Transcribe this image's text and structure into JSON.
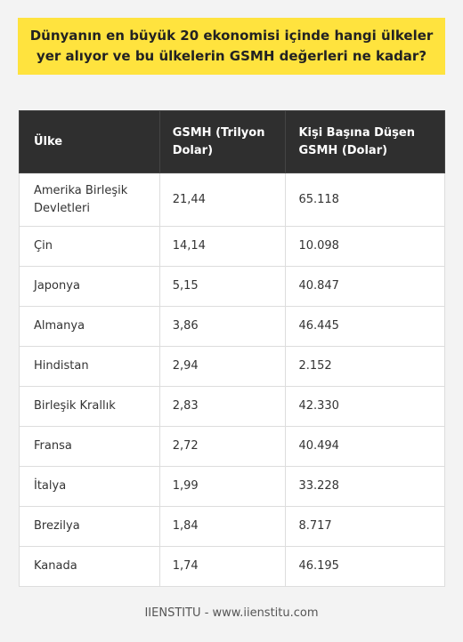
{
  "title": "Dünyanın en büyük 20 ekonomisi içinde hangi ülkeler yer alıyor ve bu ülkelerin GSMH değerleri ne kadar?",
  "table": {
    "headers": [
      "Ülke",
      "GSMH (Trilyon Dolar)",
      "Kişi Başına Düşen GSMH (Dolar)"
    ],
    "rows": [
      [
        "Amerika Birleşik Devletleri",
        "21,44",
        "65.118"
      ],
      [
        "Çin",
        "14,14",
        "10.098"
      ],
      [
        "Japonya",
        "5,15",
        "40.847"
      ],
      [
        "Almanya",
        "3,86",
        "46.445"
      ],
      [
        "Hindistan",
        "2,94",
        "2.152"
      ],
      [
        "Birleşik Krallık",
        "2,83",
        "42.330"
      ],
      [
        "Fransa",
        "2,72",
        "40.494"
      ],
      [
        "İtalya",
        "1,99",
        "33.228"
      ],
      [
        "Brezilya",
        "1,84",
        "8.717"
      ],
      [
        "Kanada",
        "1,74",
        "46.195"
      ]
    ]
  },
  "footer": "IIENSTITU - www.iienstitu.com",
  "colors": {
    "banner": "#ffe33e",
    "header_bg": "#2f2f2f",
    "page_bg": "#f3f3f3"
  }
}
